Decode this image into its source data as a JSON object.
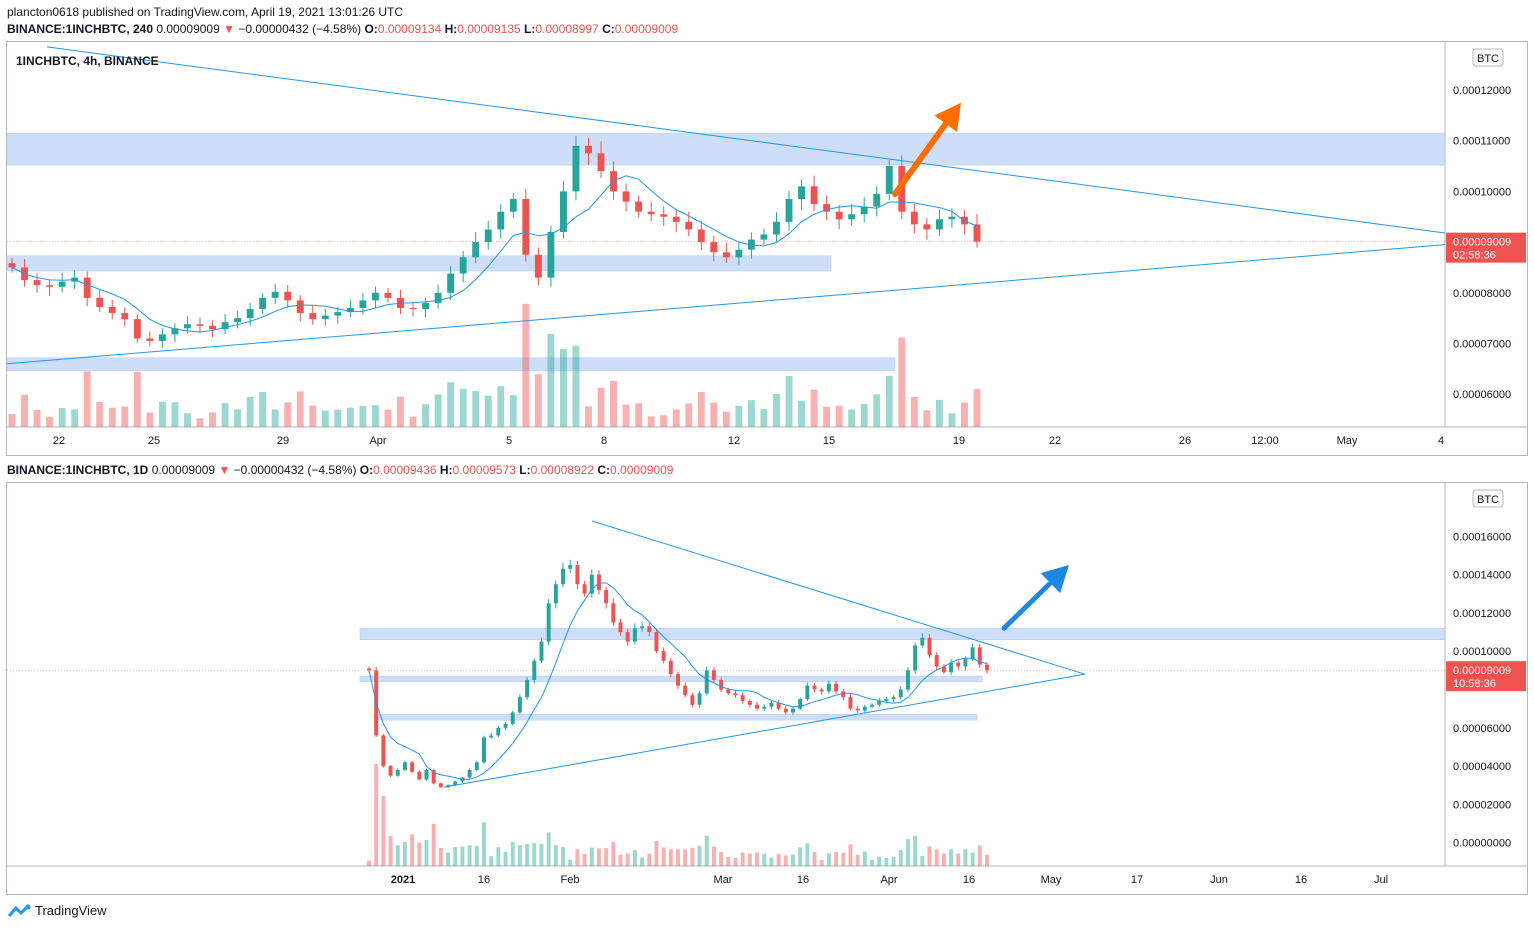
{
  "publisher_line": "plancton0618 published on TradingView.com, April 19, 2021 13:01:26 UTC",
  "top": {
    "symbol": "BINANCE:1INCHBTC, 240",
    "last": "0.00009009",
    "change_arrow": "▼",
    "change": "−0.00000432 (−4.58%)",
    "O": "0.00009134",
    "H": "0.00009135",
    "L": "0.00008997",
    "C": "0.00009009",
    "chart_title": "1INCHBTC, 4h, BINANCE",
    "currency_badge": "BTC",
    "price_label": "0.00009009",
    "countdown": "02:58:36"
  },
  "bottom": {
    "symbol": "BINANCE:1INCHBTC, 1D",
    "last": "0.00009009",
    "change_arrow": "▼",
    "change": "−0.00000432 (−4.58%)",
    "O": "0.00009436",
    "H": "0.00009573",
    "L": "0.00008922",
    "C": "0.00009009",
    "currency_badge": "BTC",
    "price_label": "0.00009009",
    "countdown": "10:58:36"
  },
  "footer_brand": "TradingView",
  "colors": {
    "up": "#26a69a",
    "down": "#ef5350",
    "ma": "#2196f3",
    "zone": "#c5d9f7",
    "trend": "#2196f3",
    "arrow_top": "#ff6d00",
    "arrow_bottom": "#1e88e5"
  },
  "chart_data": [
    {
      "type": "candlestick",
      "timeframe": "4h",
      "y_ticks": [
        "0.00012000",
        "0.00011000",
        "0.00010000",
        "0.00009000",
        "0.00008000",
        "0.00007000",
        "0.00006000"
      ],
      "x_ticks": [
        "22",
        "25",
        "29",
        "Apr",
        "5",
        "8",
        "12",
        "15",
        "19",
        "22",
        "26",
        "12:00",
        "May",
        "4"
      ],
      "ylim": [
        5.55e-05,
        0.0001275
      ],
      "zones": [
        [
          0.0001052,
          0.0001115
        ],
        [
          8.43e-05,
          8.73e-05
        ],
        [
          6.46e-05,
          6.72e-05
        ]
      ],
      "approx_closes": [
        8.5e-05,
        8.25e-05,
        8.15e-05,
        8.12e-05,
        8.22e-05,
        8.3e-05,
        7.9e-05,
        7.72e-05,
        7.6e-05,
        7.48e-05,
        7.1e-05,
        7.05e-05,
        7.18e-05,
        7.3e-05,
        7.38e-05,
        7.35e-05,
        7.28e-05,
        7.42e-05,
        7.5e-05,
        7.68e-05,
        7.9e-05,
        8.02e-05,
        7.85e-05,
        7.6e-05,
        7.48e-05,
        7.55e-05,
        7.62e-05,
        7.7e-05,
        7.85e-05,
        8e-05,
        7.9e-05,
        7.7e-05,
        7.68e-05,
        7.8e-05,
        8e-05,
        8.38e-05,
        8.7e-05,
        9e-05,
        9.25e-05,
        9.6e-05,
        9.85e-05,
        8.75e-05,
        8.3e-05,
        9.2e-05,
        0.0001,
        0.000109,
        0.0001075,
        0.000104,
        0.0001,
        9.8e-05,
        9.6e-05,
        9.55e-05,
        9.5e-05,
        9.4e-05,
        9.25e-05,
        9e-05,
        8.8e-05,
        8.7e-05,
        8.85e-05,
        9.05e-05,
        9.15e-05,
        9.4e-05,
        9.85e-05,
        0.000101,
        9.75e-05,
        9.6e-05,
        9.45e-05,
        9.55e-05,
        9.7e-05,
        9.95e-05,
        0.000105,
        9.6e-05,
        9.35e-05,
        9.25e-05,
        9.45e-05,
        9.5e-05,
        9.35e-05,
        9.01e-05
      ],
      "last_price": 9.009e-05
    },
    {
      "type": "candlestick",
      "timeframe": "1D",
      "y_ticks": [
        "0.00016000",
        "0.00014000",
        "0.00012000",
        "0.00010000",
        "0.00006000",
        "0.00004000",
        "0.00002000",
        "0.00000000"
      ],
      "x_ticks": [
        "2021",
        "16",
        "Feb",
        "Mar",
        "16",
        "Apr",
        "16",
        "May",
        "17",
        "Jun",
        "16",
        "Jul"
      ],
      "ylim": [
        -8e-06,
        0.00018
      ],
      "zones": [
        [
          0.000106,
          0.000112
        ],
        [
          8.4e-05,
          8.7e-05
        ],
        [
          6.4e-05,
          6.7e-05
        ]
      ],
      "approx_closes": [
        9e-05,
        5.6e-05,
        4e-05,
        3.5e-05,
        3.8e-05,
        4.2e-05,
        3.7e-05,
        3.3e-05,
        3.8e-05,
        3.1e-05,
        2.9e-05,
        3e-05,
        3.2e-05,
        3.4e-05,
        3.8e-05,
        4.2e-05,
        5.5e-05,
        5.6e-05,
        6e-05,
        6.2e-05,
        6.8e-05,
        7.6e-05,
        8.5e-05,
        9.5e-05,
        0.000105,
        0.000125,
        0.000135,
        0.000143,
        0.000145,
        0.000135,
        0.00013,
        0.00014,
        0.000132,
        0.000125,
        0.000115,
        0.00011,
        0.000105,
        0.000112,
        0.000113,
        0.00011,
        0.0001,
        9.5e-05,
        8.8e-05,
        8.2e-05,
        7.7e-05,
        7.2e-05,
        7.8e-05,
        9e-05,
        8.5e-05,
        8e-05,
        7.8e-05,
        7.7e-05,
        7.4e-05,
        7.2e-05,
        7e-05,
        7.1e-05,
        7.3e-05,
        7e-05,
        6.8e-05,
        7e-05,
        7.5e-05,
        8.2e-05,
        8e-05,
        7.9e-05,
        8.3e-05,
        7.9e-05,
        7.6e-05,
        7e-05,
        6.9e-05,
        7.1e-05,
        7.2e-05,
        7.4e-05,
        7.5e-05,
        7.6e-05,
        8e-05,
        9e-05,
        0.000103,
        0.000107,
        9.8e-05,
        9.2e-05,
        8.9e-05,
        9.4e-05,
        9.2e-05,
        9.6e-05,
        0.000102,
        9.3e-05,
        9.01e-05
      ],
      "last_price": 9.009e-05
    }
  ]
}
